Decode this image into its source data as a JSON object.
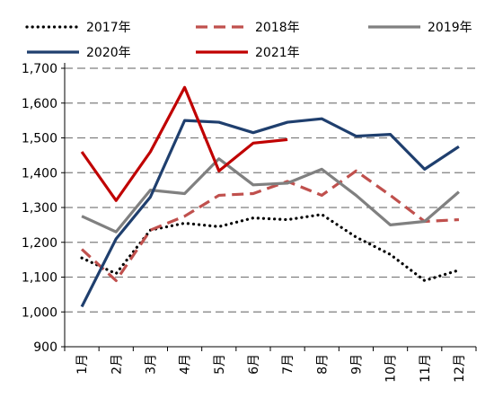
{
  "chart_data": {
    "type": "line",
    "title": "",
    "xlabel": "",
    "ylabel": "",
    "categories": [
      "1月",
      "2月",
      "3月",
      "4月",
      "5月",
      "6月",
      "7月",
      "8月",
      "9月",
      "10月",
      "11月",
      "12月"
    ],
    "ylim": [
      900,
      1700
    ],
    "yticks": [
      900,
      1000,
      1100,
      1200,
      1300,
      1400,
      1500,
      1600,
      1700
    ],
    "ytick_labels": [
      "900",
      "1,000",
      "1,100",
      "1,200",
      "1,300",
      "1,400",
      "1,500",
      "1,600",
      "1,700"
    ],
    "grid": true,
    "legend_position": "top",
    "series": [
      {
        "name": "2017年",
        "color": "#000000",
        "style": "dotted",
        "values": [
          1155,
          1110,
          1235,
          1255,
          1245,
          1270,
          1265,
          1280,
          1215,
          1165,
          1090,
          1120
        ]
      },
      {
        "name": "2018年",
        "color": "#c0504d",
        "style": "dashed",
        "values": [
          1180,
          1090,
          1235,
          1275,
          1335,
          1340,
          1375,
          1335,
          1405,
          1335,
          1260,
          1265
        ]
      },
      {
        "name": "2019年",
        "color": "#808080",
        "style": "solid",
        "values": [
          1275,
          1230,
          1350,
          1340,
          1440,
          1365,
          1370,
          1410,
          1335,
          1250,
          1260,
          1345
        ]
      },
      {
        "name": "2020年",
        "color": "#1f3f6e",
        "style": "solid",
        "values": [
          1015,
          1210,
          1330,
          1550,
          1545,
          1515,
          1545,
          1555,
          1505,
          1510,
          1410,
          1475
        ]
      },
      {
        "name": "2021年",
        "color": "#c00000",
        "style": "solid",
        "values": [
          1460,
          1320,
          1460,
          1645,
          1405,
          1485,
          1495,
          null,
          null,
          null,
          null,
          null
        ]
      }
    ]
  }
}
